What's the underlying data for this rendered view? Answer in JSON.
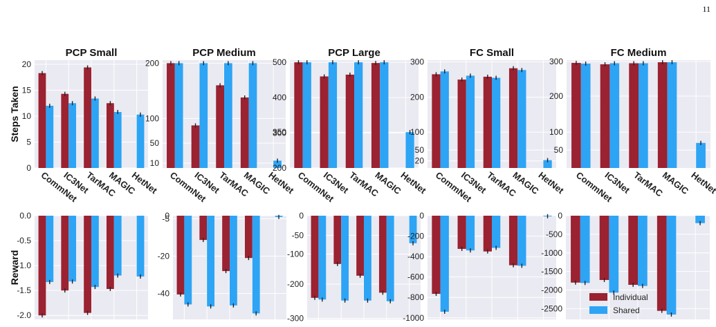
{
  "page_number": "11",
  "colors": {
    "individual": "#9b2231",
    "shared": "#2ea4f5",
    "panel_bg": "#eaeaf2",
    "grid": "#ffffff"
  },
  "legend": {
    "placement": "lower-right",
    "entries": [
      "Individual",
      "Shared"
    ]
  },
  "row_labels": {
    "top": "Steps Taken",
    "bottom": "Reward"
  },
  "chart_data": [
    {
      "type": "bar",
      "title": "PCP Small",
      "ylabel": "Steps Taken",
      "categories": [
        "CommNet",
        "IC3Net",
        "TarMAC",
        "MAGIC",
        "HetNet"
      ],
      "series": [
        {
          "name": "Individual",
          "values": [
            18.3,
            14.3,
            19.4,
            12.5,
            null
          ]
        },
        {
          "name": "Shared",
          "values": [
            12.0,
            12.5,
            13.4,
            10.8,
            10.3
          ]
        }
      ],
      "ylim": [
        0,
        20.8
      ],
      "yticks": [
        "0",
        "5",
        "10",
        "15",
        "20"
      ],
      "grid": true
    },
    {
      "type": "bar",
      "title": "PCP Medium",
      "ylabel": "",
      "categories": [
        "CommNet",
        "IC3Net",
        "TarMAC",
        "MAGIC",
        "HetNet"
      ],
      "series": [
        {
          "name": "Individual",
          "values": [
            200,
            86,
            160,
            138,
            null
          ]
        },
        {
          "name": "Shared",
          "values": [
            200,
            200,
            200,
            200,
            15
          ]
        }
      ],
      "ylim": [
        0,
        206
      ],
      "yticks": [
        "10",
        "50",
        "100",
        "200"
      ],
      "grid": true
    },
    {
      "type": "bar",
      "title": "PCP Large",
      "ylabel": "",
      "categories": [
        "CommNet",
        "IC3Net",
        "TarMAC",
        "MAGIC",
        "HetNet"
      ],
      "series": [
        {
          "name": "Individual",
          "values": [
            500,
            460,
            465,
            498,
            null
          ]
        },
        {
          "name": "Shared",
          "values": [
            500,
            500,
            500,
            500,
            350
          ]
        }
      ],
      "ylim": [
        200,
        505
      ],
      "yticks": [
        "200",
        "300",
        "350",
        "400",
        "500"
      ],
      "grid": true
    },
    {
      "type": "bar",
      "title": "FC Small",
      "ylabel": "",
      "categories": [
        "CommNet",
        "IC3Net",
        "TarMAC",
        "MAGIC",
        "HetNet"
      ],
      "series": [
        {
          "name": "Individual",
          "values": [
            265,
            250,
            258,
            282,
            null
          ]
        },
        {
          "name": "Shared",
          "values": [
            273,
            261,
            255,
            277,
            22
          ]
        }
      ],
      "ylim": [
        0,
        305
      ],
      "yticks": [
        "20",
        "50",
        "100",
        "200",
        "300"
      ],
      "grid": true
    },
    {
      "type": "bar",
      "title": "FC Medium",
      "ylabel": "",
      "categories": [
        "CommNet",
        "IC3Net",
        "TarMAC",
        "MAGIC",
        "HetNet"
      ],
      "series": [
        {
          "name": "Individual",
          "values": [
            296,
            292,
            295,
            298,
            null
          ]
        },
        {
          "name": "Shared",
          "values": [
            294,
            295,
            295,
            298,
            70
          ]
        }
      ],
      "ylim": [
        0,
        305
      ],
      "yticks": [
        "50",
        "100",
        "200",
        "300"
      ],
      "grid": true
    },
    {
      "type": "bar",
      "title": "",
      "ylabel": "Reward",
      "categories": [
        "CommNet",
        "IC3Net",
        "TarMAC",
        "MAGIC",
        "HetNet"
      ],
      "series": [
        {
          "name": "Individual",
          "values": [
            -2.0,
            -1.5,
            -1.95,
            -1.47,
            null
          ]
        },
        {
          "name": "Shared",
          "values": [
            -1.33,
            -1.32,
            -1.43,
            -1.2,
            -1.22
          ]
        }
      ],
      "ylim": [
        -2.08,
        0
      ],
      "yticks": [
        "0.0",
        "-0.5",
        "-1.0",
        "-1.5",
        "-2.0"
      ],
      "grid": true
    },
    {
      "type": "bar",
      "title": "",
      "ylabel": "",
      "categories": [
        "CommNet",
        "IC3Net",
        "TarMAC",
        "MAGIC",
        "HetNet"
      ],
      "series": [
        {
          "name": "Individual",
          "values": [
            -40.5,
            -13.5,
            -28,
            -21,
            null
          ]
        },
        {
          "name": "Shared",
          "values": [
            -45.5,
            -46.5,
            -46,
            -50,
            -2
          ]
        }
      ],
      "ylim": [
        -53,
        0
      ],
      "yticks": [
        "0",
        "-5",
        "-20",
        "-40"
      ],
      "grid": true
    },
    {
      "type": "bar",
      "title": "",
      "ylabel": "",
      "categories": [
        "CommNet",
        "IC3Net",
        "TarMAC",
        "MAGIC",
        "HetNet"
      ],
      "series": [
        {
          "name": "Individual",
          "values": [
            -240,
            -133,
            -172,
            -225,
            null
          ]
        },
        {
          "name": "Shared",
          "values": [
            -245,
            -248,
            -248,
            -250,
            -71
          ]
        }
      ],
      "ylim": [
        -305,
        0
      ],
      "yticks": [
        "0",
        "-50",
        "-100",
        "-200",
        "-300"
      ],
      "grid": true
    },
    {
      "type": "bar",
      "title": "",
      "ylabel": "",
      "categories": [
        "CommNet",
        "IC3Net",
        "TarMAC",
        "MAGIC",
        "HetNet"
      ],
      "series": [
        {
          "name": "Individual",
          "values": [
            -765,
            -325,
            -350,
            -485,
            null
          ]
        },
        {
          "name": "Shared",
          "values": [
            -940,
            -340,
            -315,
            -490,
            -5
          ]
        }
      ],
      "ylim": [
        -1015,
        0
      ],
      "yticks": [
        "0",
        "-200",
        "-400",
        "-600",
        "-800",
        "-1000"
      ],
      "grid": true
    },
    {
      "type": "bar",
      "title": "",
      "ylabel": "",
      "categories": [
        "CommNet",
        "IC3Net",
        "TarMAC",
        "MAGIC",
        "HetNet"
      ],
      "series": [
        {
          "name": "Individual",
          "values": [
            -1800,
            -1730,
            -1860,
            -2560,
            null
          ]
        },
        {
          "name": "Shared",
          "values": [
            -1810,
            -2070,
            -1890,
            -2660,
            -200
          ]
        }
      ],
      "ylim": [
        -2790,
        0
      ],
      "yticks": [
        "0",
        "-500",
        "-1000",
        "-1500",
        "-2000",
        "-2500"
      ],
      "grid": true
    }
  ]
}
